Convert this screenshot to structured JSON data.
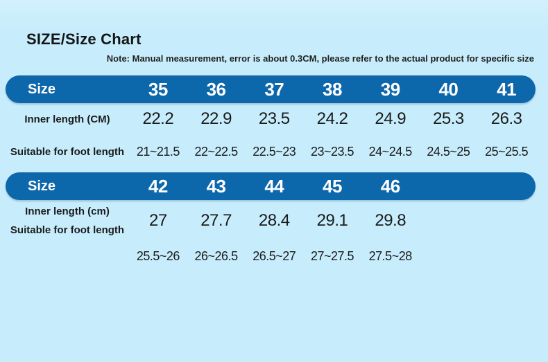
{
  "page": {
    "title": "SIZE/Size Chart",
    "note": "Note: Manual measurement, error is about 0.3CM, please refer to the actual product for specific size",
    "colors": {
      "background": "#c7edfc",
      "header_bar": "#0d67ab",
      "header_text": "#ffffff",
      "body_text": "#1b1b1b"
    }
  },
  "table1": {
    "size_label": "Size",
    "sizes": [
      "35",
      "36",
      "37",
      "38",
      "39",
      "40",
      "41"
    ],
    "inner_length_label": "Inner length (CM)",
    "inner_lengths": [
      "22.2",
      "22.9",
      "23.5",
      "24.2",
      "24.9",
      "25.3",
      "26.3"
    ],
    "foot_length_label": "Suitable for foot length",
    "foot_lengths": [
      "21~21.5",
      "22~22.5",
      "22.5~23",
      "23~23.5",
      "24~24.5",
      "24.5~25",
      "25~25.5"
    ]
  },
  "table2": {
    "size_label": "Size",
    "sizes": [
      "42",
      "43",
      "44",
      "45",
      "46"
    ],
    "inner_length_label": "Inner length (cm)",
    "inner_lengths": [
      "27",
      "27.7",
      "28.4",
      "29.1",
      "29.8"
    ],
    "foot_length_label": "Suitable for foot length",
    "foot_lengths": [
      "25.5~26",
      "26~26.5",
      "26.5~27",
      "27~27.5",
      "27.5~28"
    ]
  }
}
